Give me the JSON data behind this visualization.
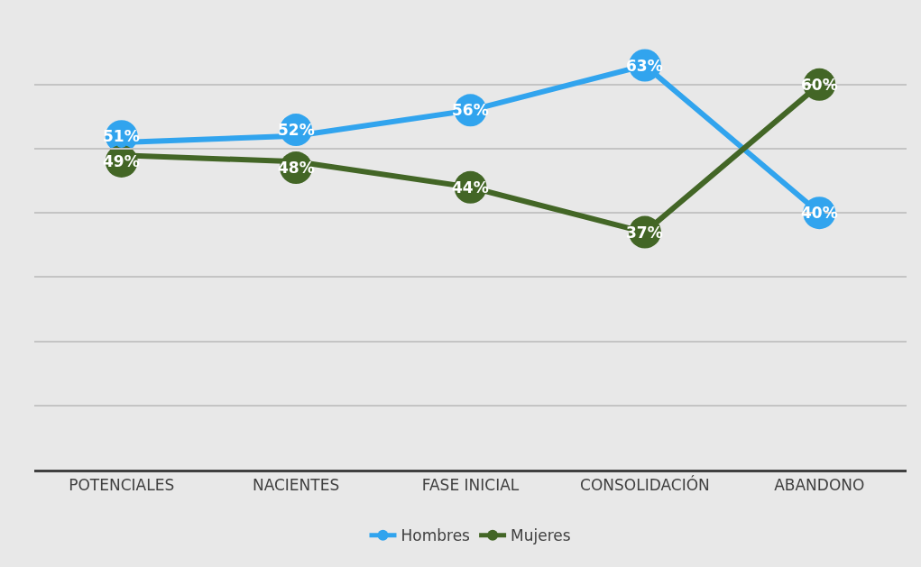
{
  "chart_data": {
    "type": "line",
    "categories": [
      "POTENCIALES",
      "NACIENTES",
      "FASE INICIAL",
      "CONSOLIDACIÓN",
      "ABANDONO"
    ],
    "series": [
      {
        "name": "Hombres",
        "color": "#31a4ee",
        "values": [
          51,
          52,
          56,
          63,
          40
        ],
        "value_labels": [
          "51%",
          "52%",
          "56%",
          "63%",
          "40%"
        ]
      },
      {
        "name": "Mujeres",
        "color": "#436626",
        "values": [
          49,
          48,
          44,
          37,
          60
        ],
        "value_labels": [
          "49%",
          "48%",
          "44%",
          "37%",
          "60%"
        ]
      }
    ],
    "grid": "y",
    "tick_labels": "x",
    "legend": "bottom",
    "marker": "circle",
    "line_style": "solid"
  }
}
